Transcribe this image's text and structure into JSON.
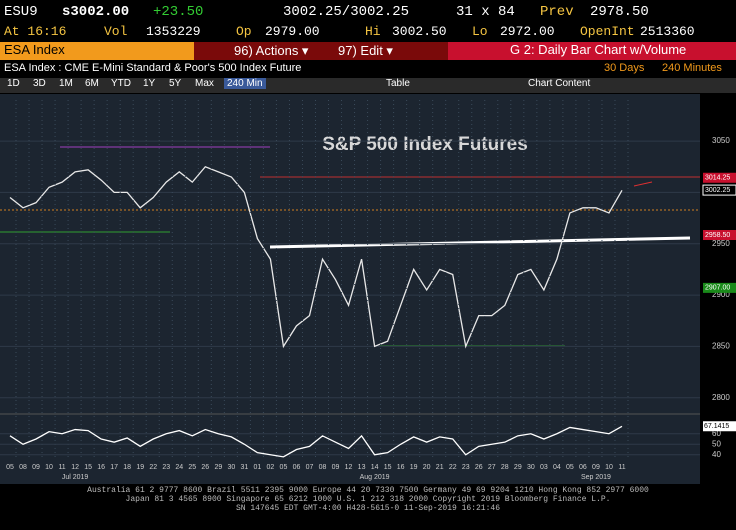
{
  "header": {
    "ticker": "ESU9",
    "last": "s3002.00",
    "change": "+23.50",
    "bid_ask": "3002.25/3002.25",
    "size": "31 x 84",
    "prev_label": "Prev",
    "prev": "2978.50",
    "time": "At 16:16",
    "vol_label": "Vol",
    "vol": "1353229",
    "op_label": "Op",
    "op": "2979.00",
    "hi_label": "Hi",
    "hi": "3002.50",
    "lo_label": "Lo",
    "lo": "2972.00",
    "oi_label": "OpenInt",
    "oi": "2513360"
  },
  "menu": {
    "security": "ESA Index",
    "actions": "96) Actions ▾",
    "edit": "97) Edit ▾",
    "screen": "G 2: Daily Bar Chart w/Volume"
  },
  "subtitle": {
    "name": "ESA Index : CME E-Mini Standard & Poor's 500 Index Future",
    "range": "30 Days",
    "period": "240 Minutes"
  },
  "toolbar": {
    "periods": [
      "1D",
      "3D",
      "1M",
      "6M",
      "YTD",
      "1Y",
      "5Y",
      "Max",
      "240 Min"
    ],
    "table": "Table",
    "content": "Chart Content"
  },
  "chart_data": [
    {
      "type": "line",
      "title": "S&P 500 Index Futures",
      "color": "#e8e8e8",
      "categories": [
        "05",
        "08",
        "09",
        "10",
        "11",
        "12",
        "15",
        "16",
        "17",
        "18",
        "19",
        "22",
        "23",
        "24",
        "25",
        "26",
        "29",
        "30",
        "31",
        "01",
        "02",
        "05",
        "06",
        "07",
        "08",
        "09",
        "12",
        "13",
        "14",
        "15",
        "16",
        "19",
        "20",
        "21",
        "22",
        "23",
        "26",
        "27",
        "28",
        "29",
        "30",
        "03",
        "04",
        "05",
        "06",
        "09",
        "10",
        "11"
      ],
      "months": [
        "Jul 2019",
        "Aug 2019",
        "Sep 2019"
      ],
      "values": [
        2995,
        2985,
        2990,
        3005,
        3010,
        3020,
        3022,
        3012,
        3000,
        3000,
        2985,
        2995,
        3010,
        3020,
        3010,
        3025,
        3020,
        3015,
        3000,
        2955,
        2935,
        2850,
        2870,
        2880,
        2935,
        2915,
        2890,
        2935,
        2850,
        2855,
        2890,
        2925,
        2905,
        2925,
        2920,
        2850,
        2880,
        2880,
        2890,
        2920,
        2925,
        2905,
        2935,
        2980,
        2985,
        2985,
        2980,
        3002
      ],
      "ylim": [
        2790,
        3090
      ],
      "yticks": [
        2800,
        2850,
        2900,
        2950,
        3000,
        3050
      ],
      "annotations": [
        "3014.25",
        "3002.25",
        "2958.50",
        "2907.00"
      ]
    },
    {
      "type": "line",
      "color": "#ffffff",
      "values": [
        58,
        50,
        55,
        62,
        60,
        64,
        63,
        55,
        52,
        56,
        48,
        55,
        60,
        63,
        58,
        64,
        60,
        57,
        50,
        42,
        40,
        38,
        45,
        48,
        58,
        52,
        46,
        58,
        40,
        42,
        50,
        57,
        52,
        57,
        55,
        40,
        48,
        50,
        52,
        58,
        60,
        55,
        60,
        66,
        64,
        62,
        60,
        67.1415
      ],
      "value_labels": {
        "47": "67.1415"
      },
      "ylim": [
        35,
        75
      ],
      "yticks": [
        40,
        50,
        60
      ]
    }
  ],
  "footer": [
    "Australia 61 2 9777 8600 Brazil 5511 2395 9000 Europe 44 20 7330 7500 Germany 49 69 9204 1210 Hong Kong 852 2977 6000",
    "Japan 81 3 4565 8900 Singapore 65 6212 1000 U.S. 1 212 318 2000 Copyright 2019 Bloomberg Finance L.P.",
    "SN 147645 EDT GMT-4:00 H428-5615-0 11-Sep-2019 16:21:46"
  ]
}
